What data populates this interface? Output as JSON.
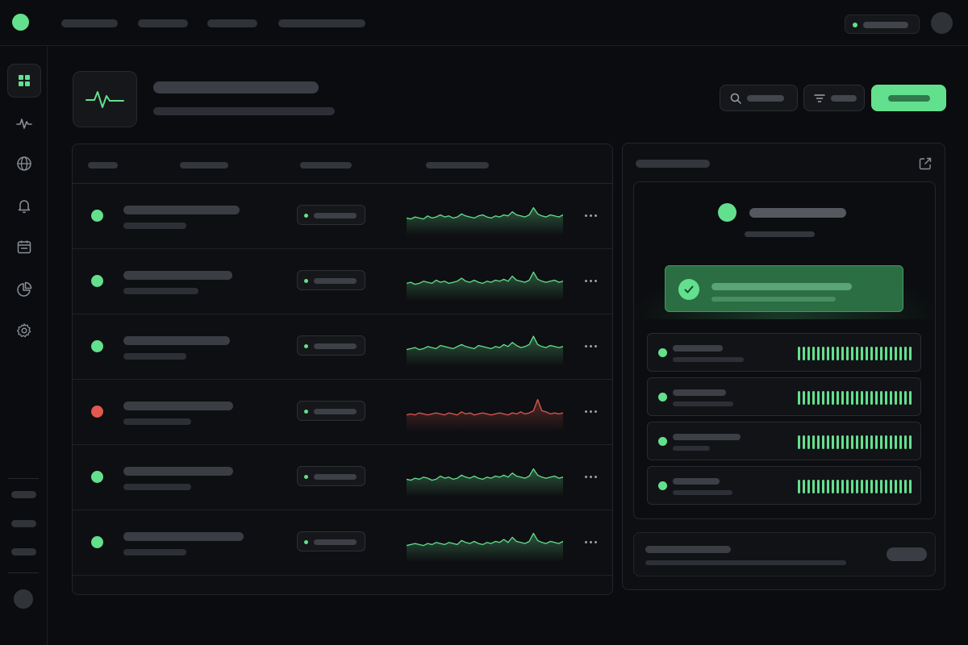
{
  "topbar": {
    "nav_items": [
      {
        "name": "nav-item-1"
      },
      {
        "name": "nav-item-2"
      },
      {
        "name": "nav-item-3"
      },
      {
        "name": "nav-item-4"
      }
    ],
    "status_color": "#63e08d"
  },
  "sidebar": {
    "icons": [
      "dashboard-grid-icon",
      "activity-icon",
      "globe-icon",
      "bell-icon",
      "calendar-icon",
      "pie-chart-icon",
      "gear-icon"
    ],
    "active_index": 0
  },
  "header": {
    "icon": "heartbeat-icon",
    "buttons": [
      "search-button",
      "filter-button",
      "primary-action-button"
    ]
  },
  "monitors": [
    {
      "status": "up",
      "color": "#63e08d",
      "spark": [
        6,
        5,
        7,
        6,
        5,
        8,
        6,
        7,
        9,
        7,
        8,
        6,
        7,
        10,
        8,
        7,
        6,
        8,
        9,
        7,
        6,
        8,
        7,
        9,
        8,
        12,
        9,
        8,
        7,
        9,
        16,
        10,
        8,
        7,
        9,
        8,
        7,
        9
      ]
    },
    {
      "status": "up",
      "color": "#63e08d",
      "spark": [
        6,
        7,
        5,
        6,
        8,
        7,
        6,
        9,
        7,
        8,
        6,
        7,
        8,
        11,
        8,
        7,
        9,
        7,
        6,
        8,
        7,
        9,
        8,
        10,
        8,
        13,
        9,
        8,
        7,
        9,
        17,
        10,
        8,
        7,
        8,
        9,
        7,
        8
      ]
    },
    {
      "status": "up",
      "color": "#63e08d",
      "spark": [
        5,
        6,
        7,
        5,
        6,
        8,
        7,
        6,
        9,
        8,
        7,
        6,
        8,
        10,
        8,
        7,
        6,
        9,
        8,
        7,
        6,
        8,
        7,
        10,
        8,
        12,
        9,
        7,
        8,
        10,
        18,
        10,
        8,
        7,
        9,
        8,
        7,
        8
      ]
    },
    {
      "status": "down",
      "color": "#e0584f",
      "spark": [
        5,
        6,
        5,
        7,
        6,
        5,
        6,
        7,
        6,
        5,
        7,
        6,
        5,
        8,
        6,
        7,
        5,
        6,
        7,
        6,
        5,
        6,
        7,
        6,
        5,
        7,
        6,
        8,
        6,
        7,
        9,
        20,
        9,
        8,
        6,
        7,
        6,
        7
      ]
    },
    {
      "status": "up",
      "color": "#63e08d",
      "spark": [
        6,
        5,
        7,
        6,
        8,
        7,
        5,
        6,
        9,
        7,
        8,
        6,
        7,
        10,
        8,
        7,
        9,
        7,
        6,
        8,
        7,
        9,
        8,
        10,
        8,
        12,
        9,
        8,
        7,
        9,
        16,
        10,
        8,
        7,
        8,
        9,
        7,
        8
      ]
    },
    {
      "status": "up",
      "color": "#63e08d",
      "spark": [
        5,
        6,
        7,
        6,
        5,
        7,
        6,
        8,
        7,
        6,
        8,
        7,
        6,
        10,
        8,
        7,
        9,
        7,
        6,
        8,
        7,
        9,
        8,
        11,
        8,
        13,
        9,
        8,
        7,
        9,
        17,
        10,
        8,
        7,
        9,
        8,
        7,
        9
      ]
    }
  ],
  "panel": {
    "external_icon": "external-link-icon",
    "success_icon": "check-circle-icon",
    "checks": [
      {
        "status": "ok",
        "ticks": 24
      },
      {
        "status": "ok",
        "ticks": 24
      },
      {
        "status": "ok",
        "ticks": 24
      },
      {
        "status": "ok",
        "ticks": 24
      }
    ]
  }
}
